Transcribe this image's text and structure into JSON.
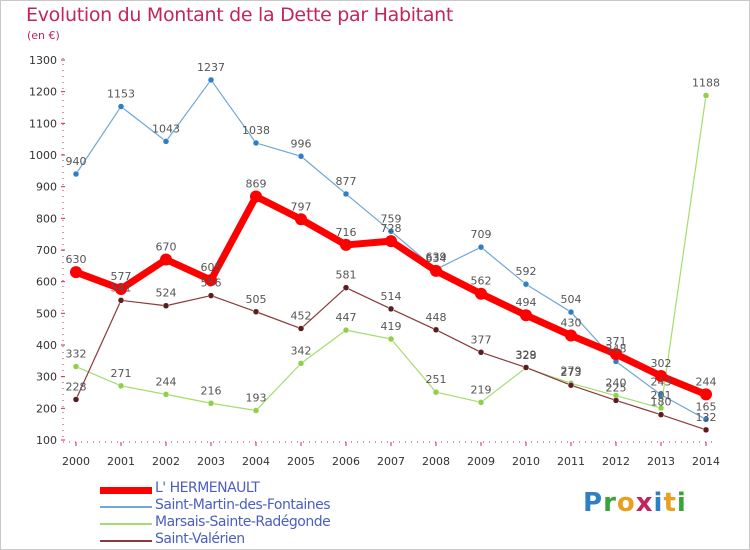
{
  "header": {
    "title": "Evolution du Montant de la Dette par Habitant",
    "subtitle": "(en €)"
  },
  "logo": {
    "text": "Proxiti",
    "colors": [
      "#2f7fc4",
      "#3aa33a",
      "#e8a020",
      "#c4245e",
      "#2f7fc4",
      "#e8a020",
      "#3aa33a"
    ]
  },
  "colors": {
    "title": "#c4245e",
    "axis_text": "#333333",
    "axis_line": "#c4245e"
  },
  "chart_data": {
    "type": "line",
    "title": "Evolution du Montant de la Dette par Habitant",
    "subtitle": "(en €)",
    "x": [
      "2000",
      "2001",
      "2002",
      "2003",
      "2004",
      "2005",
      "2006",
      "2007",
      "2008",
      "2009",
      "2010",
      "2011",
      "2012",
      "2013",
      "2014"
    ],
    "ylim": [
      100,
      1300
    ],
    "yticks": [
      100,
      200,
      300,
      400,
      500,
      600,
      700,
      800,
      900,
      1000,
      1100,
      1200,
      1300
    ],
    "grid": false,
    "legend_position": "bottom-left",
    "series": [
      {
        "name": "Saint-Martin-des-Fontaines",
        "color": "#6fa8d6",
        "marker": "#2f7fc4",
        "width": 1.2,
        "values": [
          940,
          1153,
          1043,
          1237,
          1038,
          996,
          877,
          759,
          639,
          709,
          592,
          504,
          348,
          243,
          165
        ]
      },
      {
        "name": "Marsais-Sainte-Radégonde",
        "color": "#a6dc6e",
        "marker": "#8fcf4a",
        "width": 1.2,
        "values": [
          332,
          271,
          244,
          216,
          193,
          342,
          447,
          419,
          251,
          219,
          328,
          279,
          240,
          201,
          1188
        ]
      },
      {
        "name": "Saint-Valérien",
        "color": "#8a3a3a",
        "marker": "#5a1e1e",
        "width": 1.2,
        "values": [
          228,
          541,
          524,
          556,
          505,
          452,
          581,
          514,
          448,
          377,
          329,
          273,
          225,
          180,
          132
        ]
      },
      {
        "name": "L' HERMENAULT",
        "color": "#ff0000",
        "marker": "#ff0000",
        "width": 7,
        "values": [
          630,
          577,
          670,
          605,
          869,
          797,
          716,
          728,
          634,
          562,
          494,
          430,
          371,
          302,
          244
        ]
      }
    ],
    "labels": {
      "Saint-Martin-des-Fontaines": [
        "940",
        "1153",
        "1043",
        "1237",
        "1038",
        "996",
        "877",
        "759",
        "639",
        "709",
        "592",
        "504",
        "348",
        "243",
        "165"
      ],
      "Marsais-Sainte-Radégonde": [
        "332",
        "271",
        "244",
        "216",
        "193",
        "342",
        "447",
        "419",
        "251",
        "219",
        "328",
        "279",
        "240",
        "201",
        "1188"
      ],
      "Saint-Valérien": [
        "228",
        "541",
        "524",
        "556",
        "505",
        "452",
        "581",
        "514",
        "448",
        "377",
        "329",
        "273",
        "225",
        "180",
        "132"
      ],
      "L' HERMENAULT": [
        "630",
        "577",
        "670",
        "605",
        "869",
        "797",
        "716",
        "728",
        "634",
        "562",
        "494",
        "430",
        "371",
        "302",
        "244"
      ]
    }
  },
  "legend": {
    "items": [
      {
        "label": "L' HERMENAULT",
        "color": "#ff0000",
        "width": 7
      },
      {
        "label": "Saint-Martin-des-Fontaines",
        "color": "#6fa8d6",
        "width": 2
      },
      {
        "label": "Marsais-Sainte-Radégonde",
        "color": "#a6dc6e",
        "width": 2
      },
      {
        "label": "Saint-Valérien",
        "color": "#8a3a3a",
        "width": 2
      }
    ],
    "label_color": "#4a5fc1"
  }
}
